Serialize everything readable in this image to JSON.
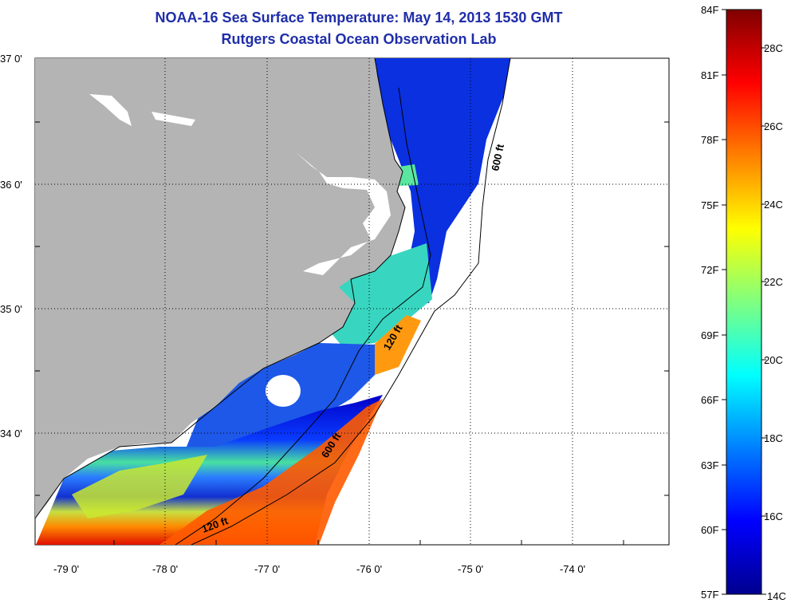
{
  "title": {
    "line1": "NOAA-16 Sea Surface Temperature:  May 14, 2013 1530 GMT",
    "line2": "Rutgers Coastal Ocean Observation Lab"
  },
  "map": {
    "lat_labels": [
      "37 0'",
      "36 0'",
      "35 0'",
      "34 0'"
    ],
    "lon_labels": [
      "-79 0'",
      "-78 0'",
      "-77 0'",
      "-76 0'",
      "-75 0'",
      "-74 0'"
    ],
    "contour_labels": [
      "600 ft",
      "120 ft",
      "600 ft",
      "120 ft"
    ],
    "colors": {
      "land": "#b4b4b4",
      "ocean_missing": "#ffffff"
    }
  },
  "colorbar": {
    "fahrenheit_labels": [
      "84F",
      "81F",
      "78F",
      "75F",
      "72F",
      "69F",
      "66F",
      "63F",
      "60F",
      "57F"
    ],
    "celsius_labels": [
      "28C",
      "26C",
      "24C",
      "22C",
      "20C",
      "18C",
      "16C",
      "14C"
    ],
    "range_c": [
      14,
      29
    ]
  }
}
